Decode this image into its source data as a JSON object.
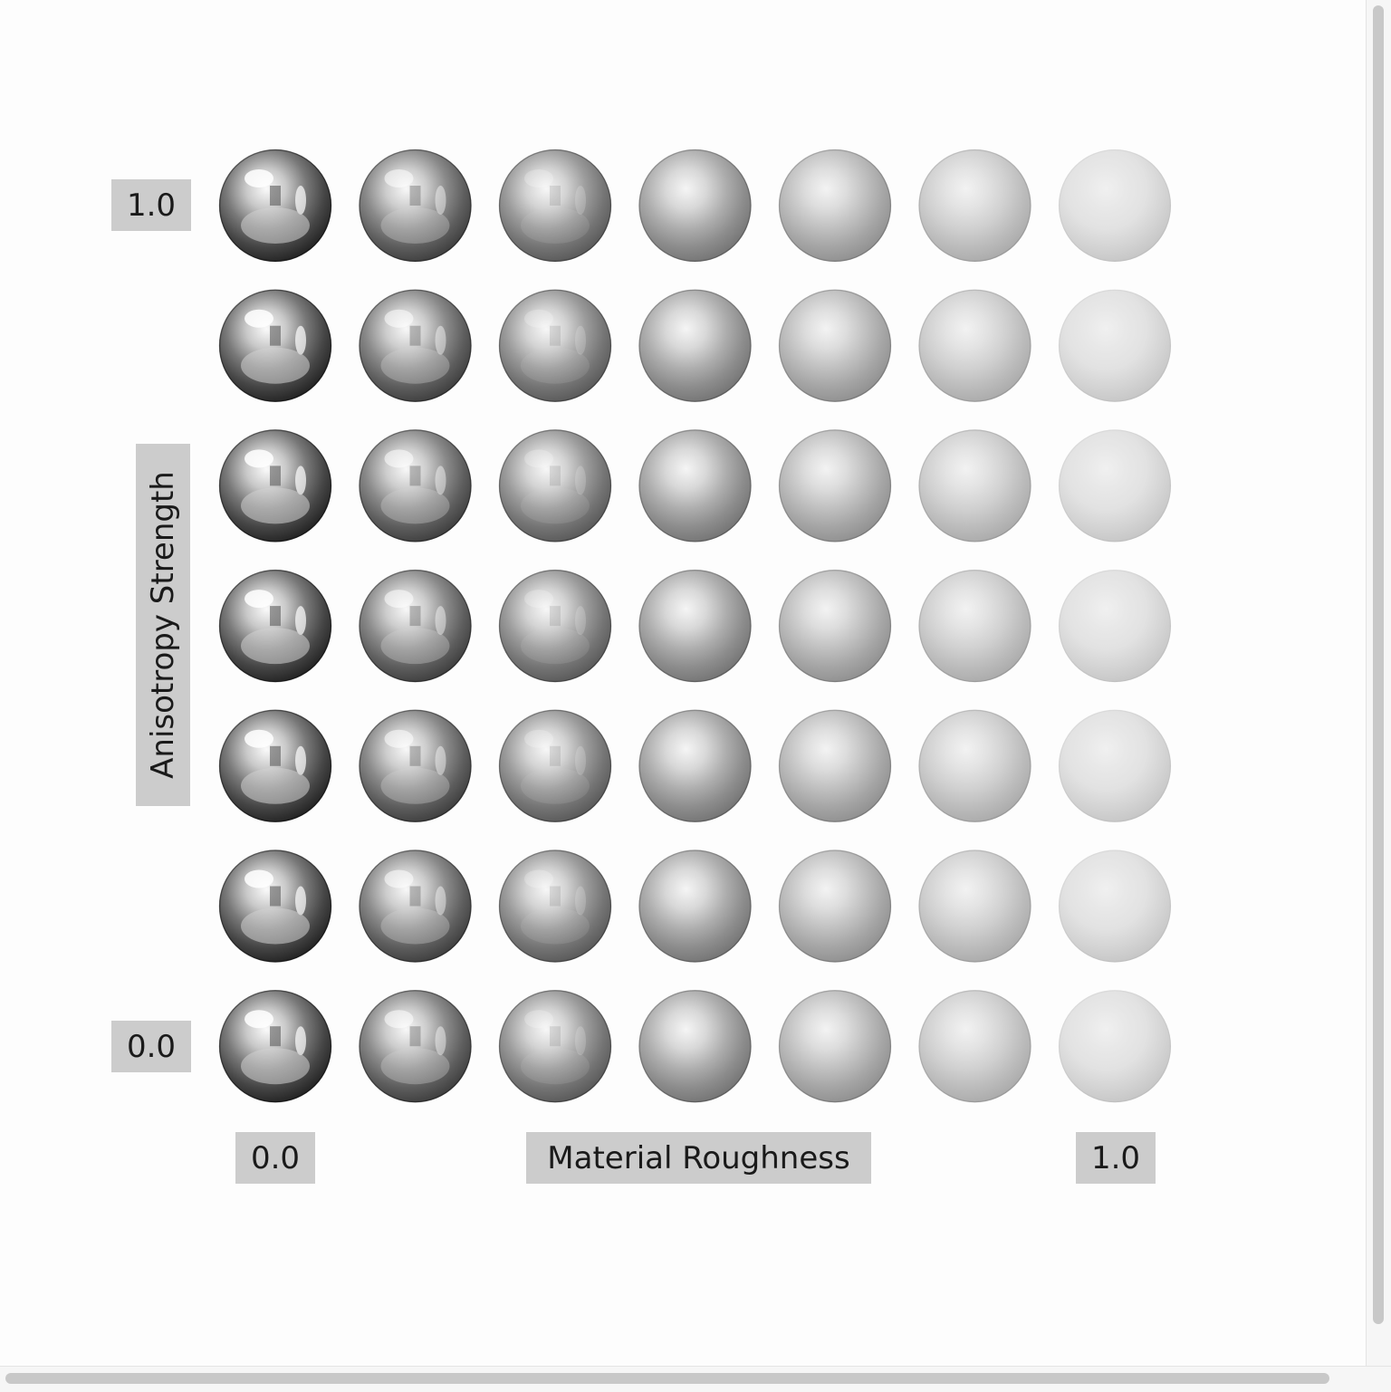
{
  "grid": {
    "rows": 7,
    "columns": 7,
    "roughness_values": [
      0.0,
      0.1667,
      0.3333,
      0.5,
      0.6667,
      0.8333,
      1.0
    ],
    "anisotropy_values": [
      1.0,
      0.8333,
      0.6667,
      0.5,
      0.3333,
      0.1667,
      0.0
    ]
  },
  "y_axis": {
    "title": "Anisotropy Strength",
    "max_label": "1.0",
    "min_label": "0.0"
  },
  "x_axis": {
    "title": "Material Roughness",
    "min_label": "0.0",
    "max_label": "1.0"
  },
  "colors": {
    "background": "#fdfdfd",
    "label_box": "#cccccc",
    "label_text": "#1a1a1a",
    "scrollbar_thumb": "#c8c8c8"
  }
}
